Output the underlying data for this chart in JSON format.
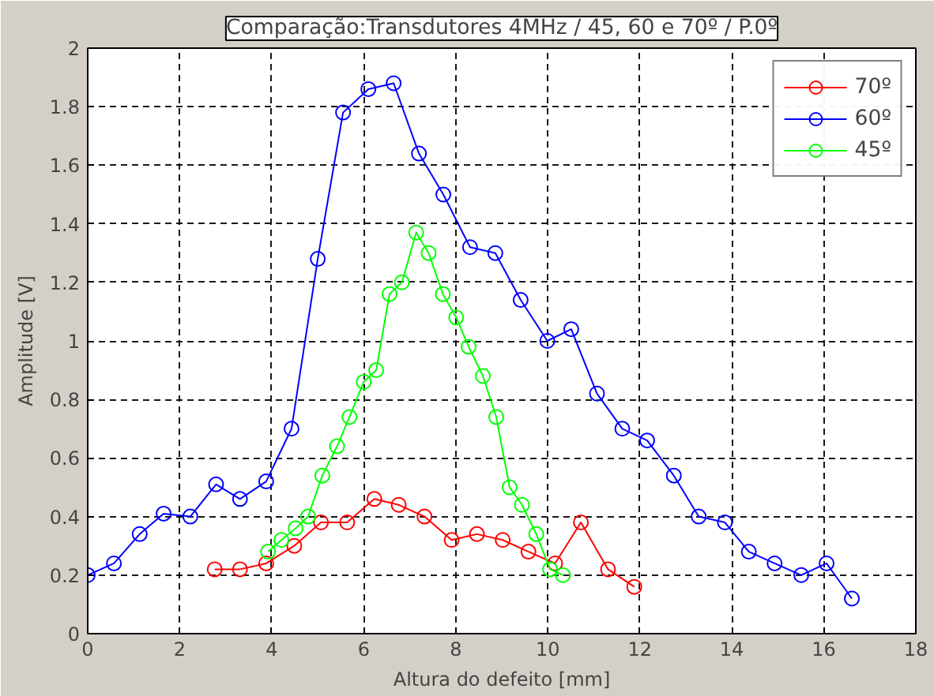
{
  "chart_data": {
    "type": "line",
    "title": "Comparação:Transdutores 4MHz / 45, 60 e 70º / P.0º",
    "xlabel": "Altura do defeito [mm]",
    "ylabel": "Amplitude [V]",
    "xlim": [
      0,
      18
    ],
    "ylim": [
      0,
      2
    ],
    "xticks": [
      0,
      2,
      4,
      6,
      8,
      10,
      12,
      14,
      16,
      18
    ],
    "yticks": [
      0,
      0.2,
      0.4,
      0.6,
      0.8,
      1,
      1.2,
      1.4,
      1.6,
      1.8,
      2
    ],
    "grid": true,
    "legend": "top right",
    "marker": "circle",
    "line_style": "solid",
    "series": [
      {
        "name": "70º",
        "color": "#ff0000",
        "x": [
          2.76,
          3.31,
          3.88,
          4.49,
          5.07,
          5.64,
          6.23,
          6.76,
          7.32,
          7.91,
          8.46,
          9.02,
          9.58,
          10.16,
          10.72,
          11.31,
          11.88
        ],
        "values": [
          0.22,
          0.22,
          0.24,
          0.3,
          0.38,
          0.38,
          0.46,
          0.44,
          0.4,
          0.32,
          0.34,
          0.32,
          0.28,
          0.24,
          0.38,
          0.22,
          0.16
        ]
      },
      {
        "name": "60º",
        "color": "#0000ff",
        "x": [
          0,
          0.57,
          1.13,
          1.65,
          2.23,
          2.79,
          3.31,
          3.88,
          4.43,
          5.0,
          5.55,
          6.1,
          6.65,
          7.2,
          7.73,
          8.31,
          8.86,
          9.41,
          9.99,
          10.51,
          11.07,
          11.62,
          12.16,
          12.74,
          13.28,
          13.85,
          14.37,
          14.93,
          15.51,
          16.06,
          16.61
        ],
        "values": [
          0.2,
          0.24,
          0.34,
          0.41,
          0.4,
          0.51,
          0.46,
          0.52,
          0.7,
          1.28,
          1.78,
          1.86,
          1.88,
          1.64,
          1.5,
          1.32,
          1.3,
          1.14,
          1.0,
          1.04,
          0.82,
          0.7,
          0.66,
          0.54,
          0.4,
          0.38,
          0.28,
          0.24,
          0.2,
          0.24,
          0.12
        ]
      },
      {
        "name": "45º",
        "color": "#00ff00",
        "x": [
          3.92,
          4.21,
          4.52,
          4.79,
          5.1,
          5.42,
          5.69,
          6.0,
          6.27,
          6.56,
          6.83,
          7.14,
          7.41,
          7.72,
          8.01,
          8.28,
          8.59,
          8.88,
          9.17,
          9.44,
          9.75,
          10.05,
          10.33
        ],
        "values": [
          0.28,
          0.32,
          0.36,
          0.4,
          0.54,
          0.64,
          0.74,
          0.86,
          0.9,
          1.16,
          1.2,
          1.37,
          1.3,
          1.16,
          1.08,
          0.98,
          0.88,
          0.74,
          0.5,
          0.44,
          0.34,
          0.22,
          0.2
        ]
      }
    ]
  }
}
